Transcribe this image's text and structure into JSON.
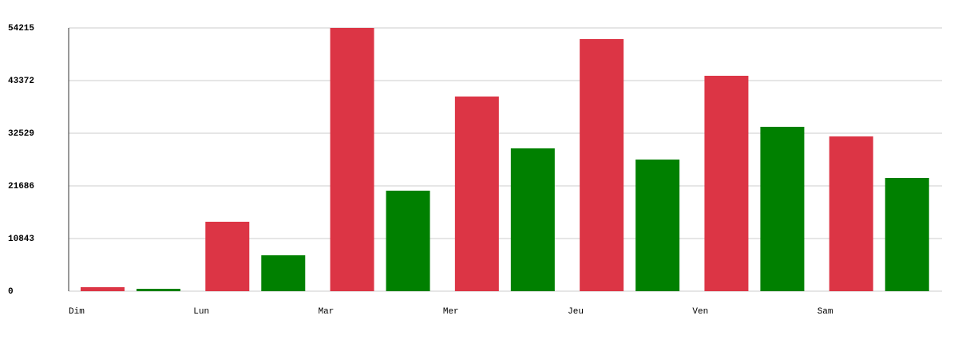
{
  "chart_data": {
    "type": "bar",
    "categories": [
      "Dim",
      "Lun",
      "Mar",
      "Mer",
      "Jeu",
      "Ven",
      "Sam"
    ],
    "series": [
      {
        "color": "#dc3545",
        "values": [
          820,
          14300,
          54215,
          40090,
          51920,
          44360,
          31870
        ]
      },
      {
        "color": "#008000",
        "values": [
          490,
          7390,
          20700,
          29410,
          27110,
          33850,
          23330
        ]
      }
    ],
    "ylim": [
      0,
      54215
    ],
    "yticks": [
      0,
      10843,
      21686,
      32529,
      43372,
      54215
    ],
    "grid": true
  }
}
